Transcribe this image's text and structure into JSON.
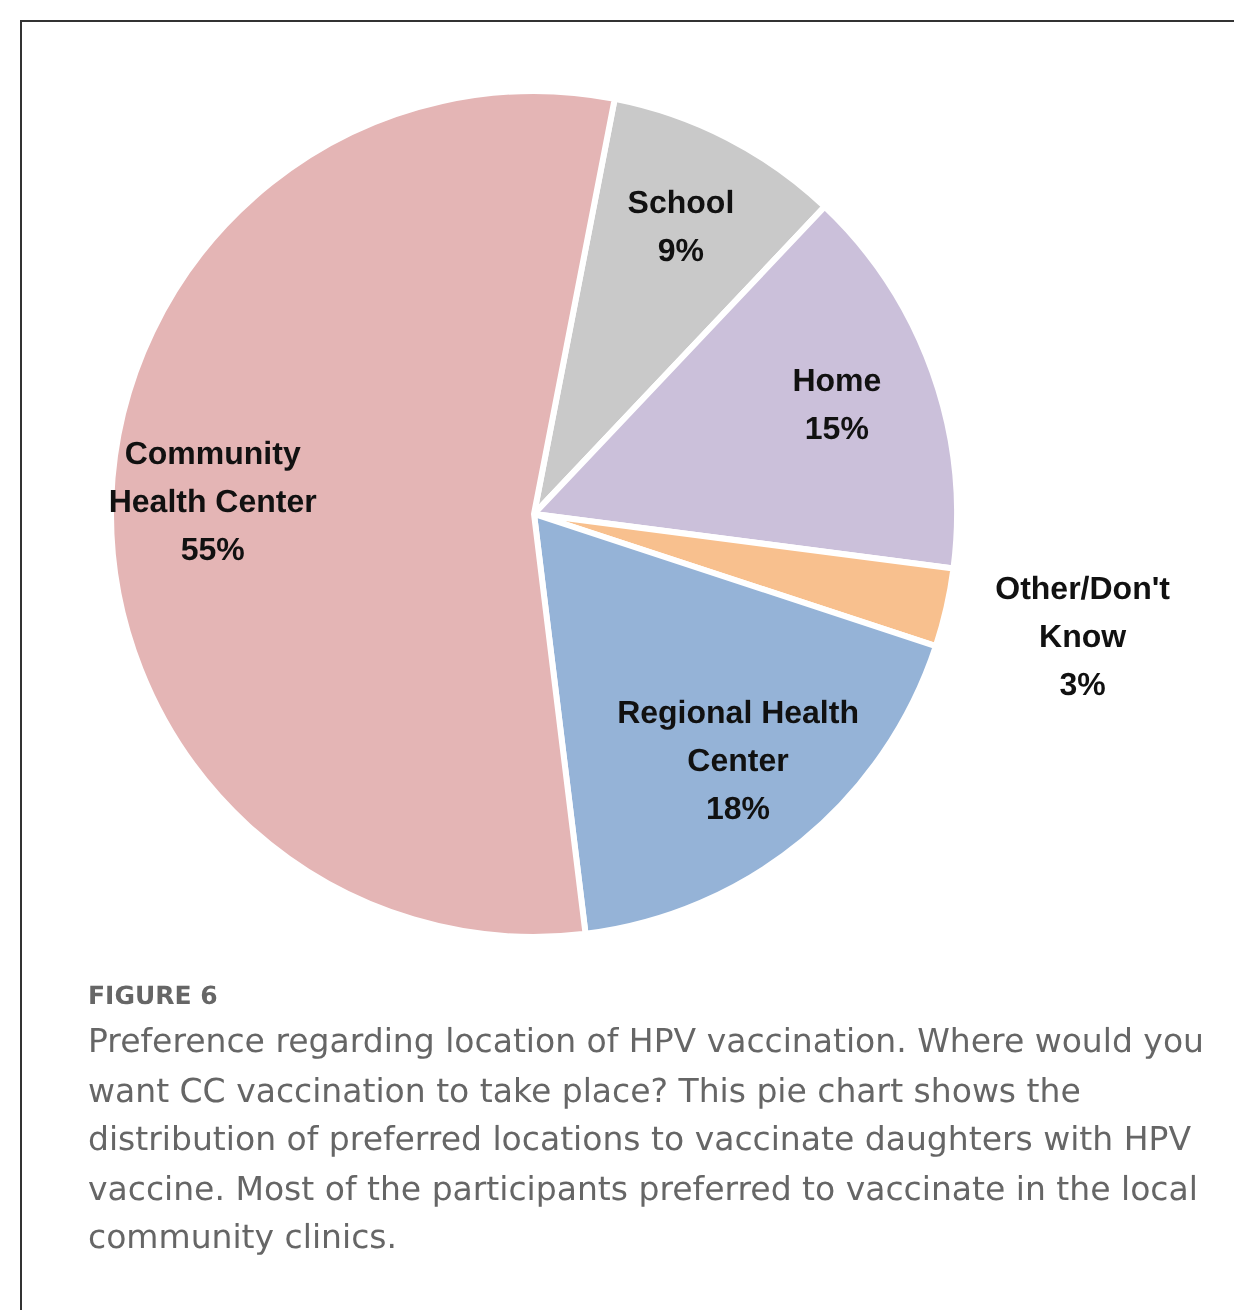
{
  "chart_data": {
    "type": "pie",
    "categories": [
      "School",
      "Home",
      "Other/Don't Know",
      "Regional Health Center",
      "Community Health Center"
    ],
    "values": [
      9,
      15,
      3,
      18,
      55
    ],
    "colors": [
      "#c9c9c9",
      "#cbc0da",
      "#f8c08e",
      "#95b3d7",
      "#e4b5b5"
    ],
    "value_labels": [
      "9%",
      "15%",
      "3%",
      "18%",
      "55%"
    ],
    "legend": false,
    "annotations": [
      "FIGURE 6",
      "Preference regarding location of HPV vaccination. Where would you want CC vaccination to take place? This pie chart shows the distribution of preferred locations to vaccinate daughters with HPV vaccine. Most of the participants preferred to vaccinate in the local community clinics."
    ]
  }
}
